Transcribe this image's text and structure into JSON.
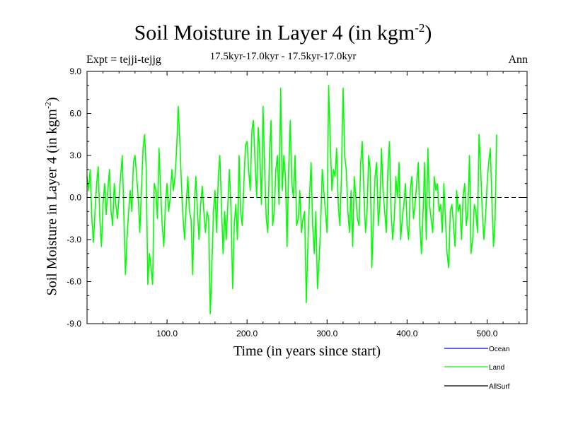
{
  "chart_data": {
    "type": "line",
    "title_main": "Soil Moisture in Layer 4 (in kgm",
    "title_sup": "-2",
    "title_end": ")",
    "subtitle": "17.5kyr-17.0kyr - 17.5kyr-17.0kyr",
    "expt_label": "Expt = tejji-tejjg",
    "season_label": "Ann",
    "xlabel": "Time (in years since start)",
    "ylabel_main": "Soil Moisture in Layer 4 (in kgm",
    "ylabel_sup": "-2",
    "ylabel_end": ")",
    "xlim": [
      0,
      550
    ],
    "ylim": [
      -9,
      9
    ],
    "xticks": [
      100,
      200,
      300,
      400,
      500
    ],
    "xtick_labels": [
      "100.0",
      "200.0",
      "300.0",
      "400.0",
      "500.0"
    ],
    "yticks": [
      9,
      6,
      3,
      0,
      -3,
      -6,
      -9
    ],
    "ytick_labels": [
      "9.0",
      "6.0",
      "3.0",
      "0.0",
      "-3.0",
      "-6.0",
      "-9.0"
    ],
    "zero_line": 0,
    "legend": [
      {
        "name": "Ocean",
        "color": "#0000ff"
      },
      {
        "name": "Land",
        "color": "#00ff00"
      },
      {
        "name": "AllSurf",
        "color": "#000000"
      }
    ],
    "series": [
      {
        "name": "Land",
        "color": "#00ff00",
        "x_start": 0,
        "x_step": 2,
        "values": [
          1.5,
          0.5,
          2.0,
          -1.5,
          -3.2,
          -1.0,
          1.0,
          2.2,
          -1.5,
          -3.5,
          -0.5,
          1.0,
          -1.2,
          0.5,
          2.0,
          -1.0,
          -2.0,
          1.0,
          -0.5,
          -1.5,
          0.0,
          1.5,
          3.0,
          -1.0,
          -5.5,
          -3.0,
          -1.0,
          0.5,
          -1.0,
          2.5,
          3.0,
          1.5,
          0.0,
          -2.5,
          0.5,
          3.5,
          4.5,
          2.0,
          -6.2,
          -4.0,
          -5.0,
          -6.2,
          1.0,
          0.5,
          -1.5,
          3.5,
          0.5,
          -2.0,
          -3.5,
          -0.5,
          1.0,
          -1.0,
          0.0,
          2.0,
          0.5,
          1.5,
          3.5,
          6.5,
          4.0,
          1.0,
          -1.5,
          -3.0,
          -0.5,
          1.5,
          -1.0,
          -1.5,
          -5.5,
          -1.0,
          1.5,
          -1.0,
          -3.0,
          -0.5,
          0.8,
          -1.0,
          -2.5,
          -1.0,
          -1.5,
          -8.3,
          -5.0,
          -1.0,
          0.5,
          -2.5,
          1.5,
          3.0,
          -0.5,
          -4.0,
          -1.0,
          -3.0,
          -0.5,
          2.0,
          -1.0,
          -6.5,
          -2.0,
          -0.5,
          -3.0,
          3.0,
          -1.0,
          -2.0,
          1.0,
          3.7,
          4.0,
          2.0,
          0.5,
          4.8,
          5.5,
          2.5,
          0.0,
          5.0,
          3.0,
          -0.5,
          6.5,
          2.0,
          -1.5,
          -2.5,
          3.0,
          5.5,
          -2.0,
          -1.0,
          2.0,
          3.0,
          -0.5,
          7.8,
          0.5,
          3.0,
          1.5,
          -3.5,
          2.0,
          5.5,
          1.0,
          0.0,
          3.0,
          -2.0,
          -1.5,
          0.5,
          -2.5,
          -1.5,
          -1.0,
          -7.5,
          -3.5,
          0.0,
          2.5,
          -2.0,
          -4.0,
          -1.0,
          -6.5,
          -4.5,
          -2.0,
          2.0,
          0.5,
          -1.0,
          -2.5,
          8.0,
          4.0,
          0.5,
          2.0,
          1.5,
          3.5,
          -0.5,
          -2.0,
          1.5,
          7.8,
          3.0,
          2.0,
          -1.0,
          -2.5,
          0.5,
          -3.5,
          1.5,
          0.0,
          -1.5,
          -2.0,
          2.5,
          4.0,
          0.5,
          -2.5,
          -1.0,
          3.0,
          2.0,
          -5.0,
          -1.5,
          1.5,
          2.5,
          -2.0,
          -0.5,
          3.5,
          0.5,
          -1.0,
          -2.5,
          2.0,
          4.0,
          -1.0,
          -3.0,
          -1.5,
          1.5,
          0.0,
          2.5,
          -3.0,
          -1.5,
          -0.5,
          1.0,
          -2.0,
          -3.0,
          0.5,
          1.5,
          -1.5,
          -0.5,
          1.0,
          2.5,
          -2.0,
          -4.0,
          -1.0,
          2.5,
          -3.0,
          3.5,
          -0.5,
          -1.5,
          -2.5,
          1.5,
          0.5,
          1.0,
          -1.0,
          -0.5,
          -2.5,
          1.0,
          -1.5,
          -4.0,
          -5.0,
          -1.0,
          -0.5,
          -2.0,
          -3.5,
          0.5,
          -1.0,
          -0.5,
          -3.0,
          0.0,
          1.0,
          -2.0,
          -1.0,
          3.0,
          -4.0,
          -3.0,
          -0.5,
          -1.0,
          -2.5,
          4.5,
          2.0,
          -1.0,
          -3.0,
          -1.5,
          1.0,
          2.5,
          3.5,
          0.0,
          -3.5,
          -1.5,
          4.5
        ]
      }
    ]
  }
}
